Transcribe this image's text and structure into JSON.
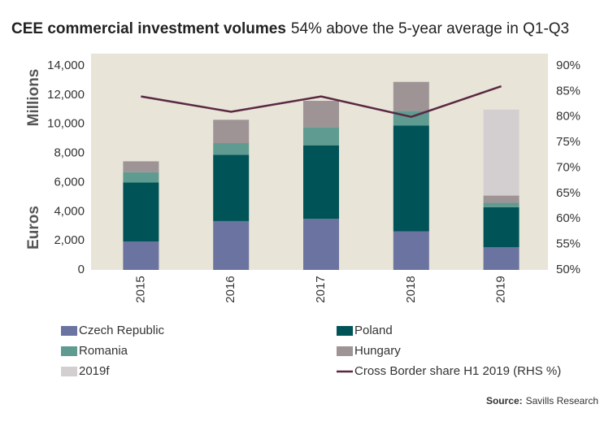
{
  "chart_data": {
    "type": "bar",
    "stacked": true,
    "title": "CEE commercial investment volumes",
    "subtitle": "54% above the 5-year average in Q1-Q3",
    "ylabel": [
      "Euros",
      "Millions"
    ],
    "categories": [
      "2015",
      "2016",
      "2017",
      "2018",
      "2019"
    ],
    "series": [
      {
        "name": "Czech Republic",
        "color": "#6b73a0",
        "values": [
          1950,
          3350,
          3500,
          2650,
          1550
        ]
      },
      {
        "name": "Poland",
        "color": "#005458",
        "values": [
          4050,
          4550,
          5050,
          7250,
          2750
        ]
      },
      {
        "name": "Romania",
        "color": "#5f9b91",
        "values": [
          700,
          800,
          1250,
          1000,
          300
        ]
      },
      {
        "name": "Hungary",
        "color": "#9e9496",
        "values": [
          750,
          1600,
          1800,
          2000,
          500
        ]
      },
      {
        "name": "2019f",
        "color": "#d3cfd1",
        "values": [
          null,
          null,
          null,
          null,
          5900
        ]
      },
      {
        "name": "Cross Border share H1 2019 (RHS %)",
        "color": "#5a2843",
        "type": "line",
        "axis": "y2",
        "values": [
          84,
          81,
          84,
          80,
          86
        ]
      }
    ],
    "ylim": [
      0,
      14000
    ],
    "yticks": [
      0,
      {
        "value": 2000,
        "label": "2,000"
      },
      {
        "value": 4000,
        "label": "4,000"
      },
      {
        "value": 6000,
        "label": "6,000"
      },
      {
        "value": 8000,
        "label": "8,000"
      },
      {
        "value": 10000,
        "label": "10,000"
      },
      {
        "value": 12000,
        "label": "12,000"
      },
      {
        "value": 14000,
        "label": "14,000"
      }
    ],
    "y2lim": [
      50,
      90
    ],
    "y2ticks": [
      {
        "value": 50,
        "label": "50%"
      },
      {
        "value": 55,
        "label": "55%"
      },
      {
        "value": 60,
        "label": "60%"
      },
      {
        "value": 65,
        "label": "65%"
      },
      {
        "value": 70,
        "label": "70%"
      },
      {
        "value": 75,
        "label": "75%"
      },
      {
        "value": 80,
        "label": "80%"
      },
      {
        "value": 85,
        "label": "85%"
      },
      {
        "value": 90,
        "label": "90%"
      }
    ],
    "source_label": "Source:",
    "source": "Savills Research"
  }
}
